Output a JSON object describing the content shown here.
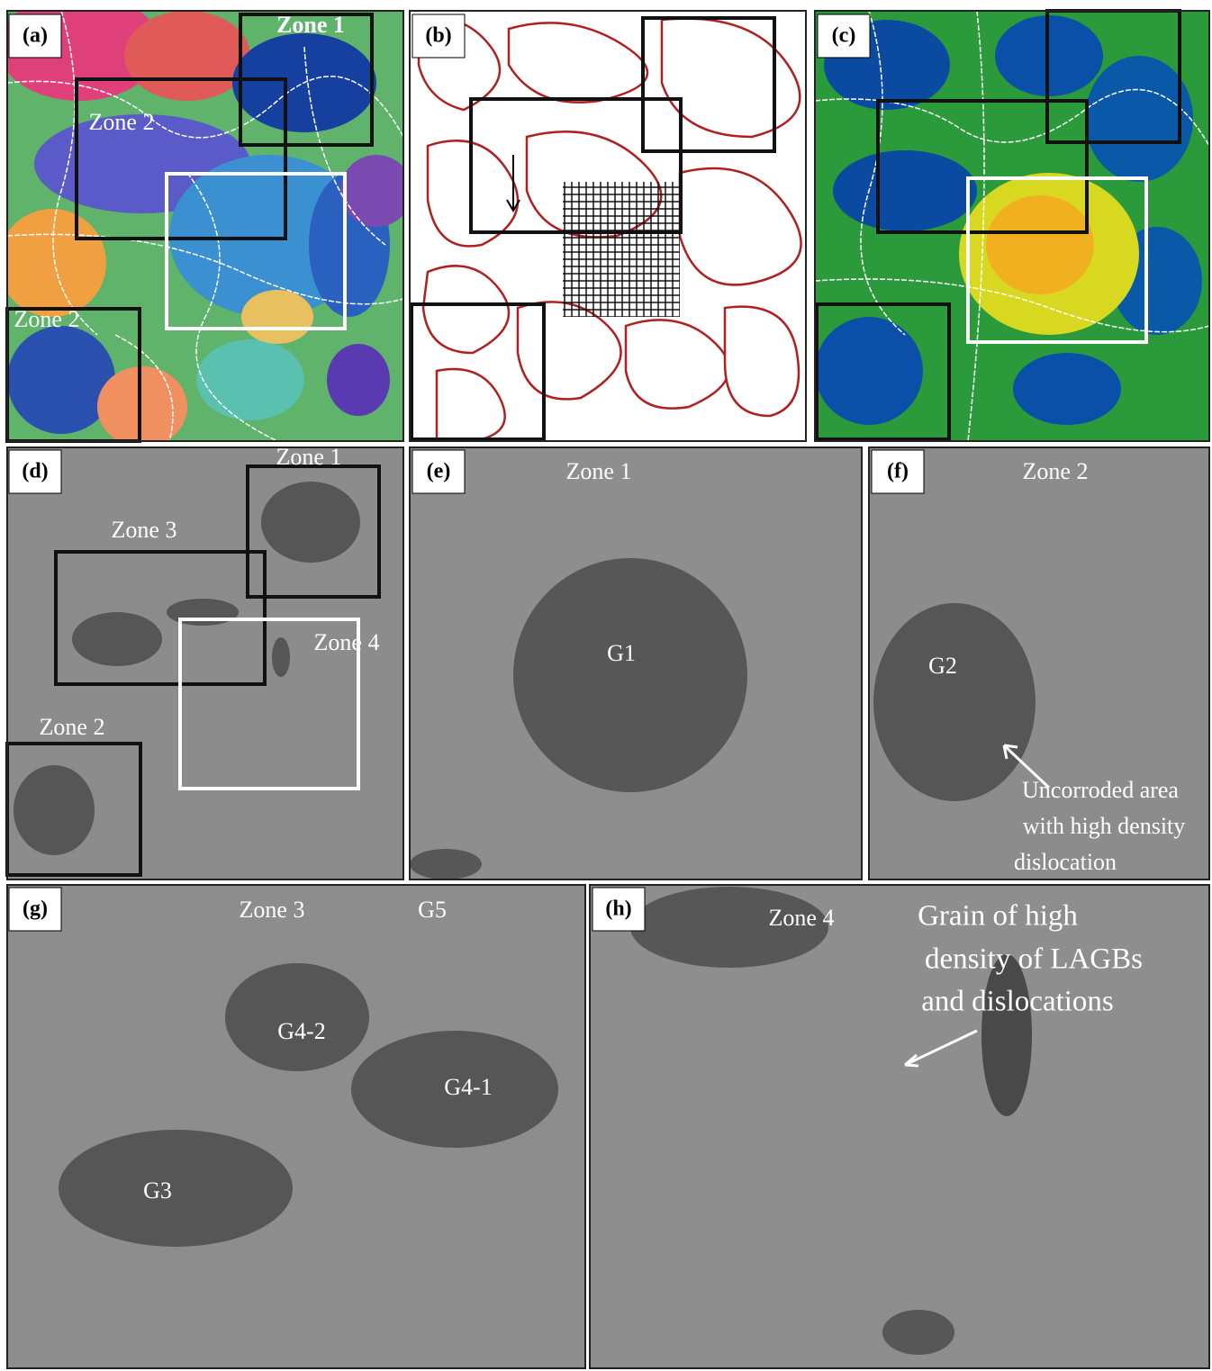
{
  "panels": [
    {
      "label": "(a)",
      "annotations": [
        "Zone 1",
        "Zone 2",
        "Zone 2"
      ]
    },
    {
      "label": "(b)"
    },
    {
      "label": "(c)"
    },
    {
      "label": "(d)",
      "annotations": [
        "Zone 1",
        "Zone 3",
        "Zone 4",
        "Zone 2"
      ]
    },
    {
      "label": "(e)",
      "annotations": [
        "Zone 1",
        "G1"
      ]
    },
    {
      "label": "(f)",
      "annotations": [
        "Zone 2",
        "G2",
        "Uncorroded area",
        "with high density",
        "dislocation"
      ]
    },
    {
      "label": "(g)",
      "annotations": [
        "Zone 3",
        "G5",
        "G4-2",
        "G4-1",
        "G3"
      ]
    },
    {
      "label": "(h)",
      "annotations": [
        "Zone 4",
        "Grain of high",
        "density of LAGBs",
        "and dislocations"
      ]
    }
  ]
}
